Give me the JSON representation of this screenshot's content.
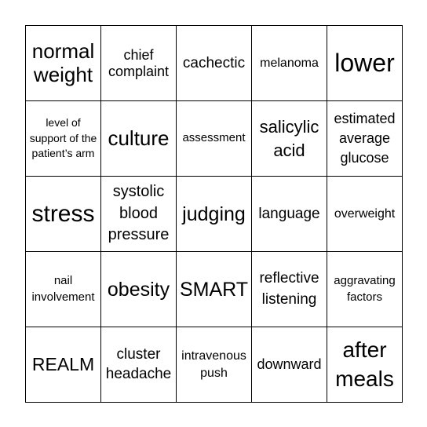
{
  "board": {
    "cells": [
      "normal weight",
      "chief complaint",
      "cachectic",
      "melanoma",
      "lower",
      "level of support of the patient’s arm",
      "culture",
      "assessment",
      "salicylic acid",
      "estimated average glucose",
      "stress",
      "systolic blood pressure",
      "judging",
      "language",
      "overweight",
      "nail involvement",
      "obesity",
      "SMART",
      "reflective listening",
      "aggravating factors",
      "REALM",
      "cluster headache",
      "intravenous push",
      "downward",
      "after meals"
    ]
  }
}
